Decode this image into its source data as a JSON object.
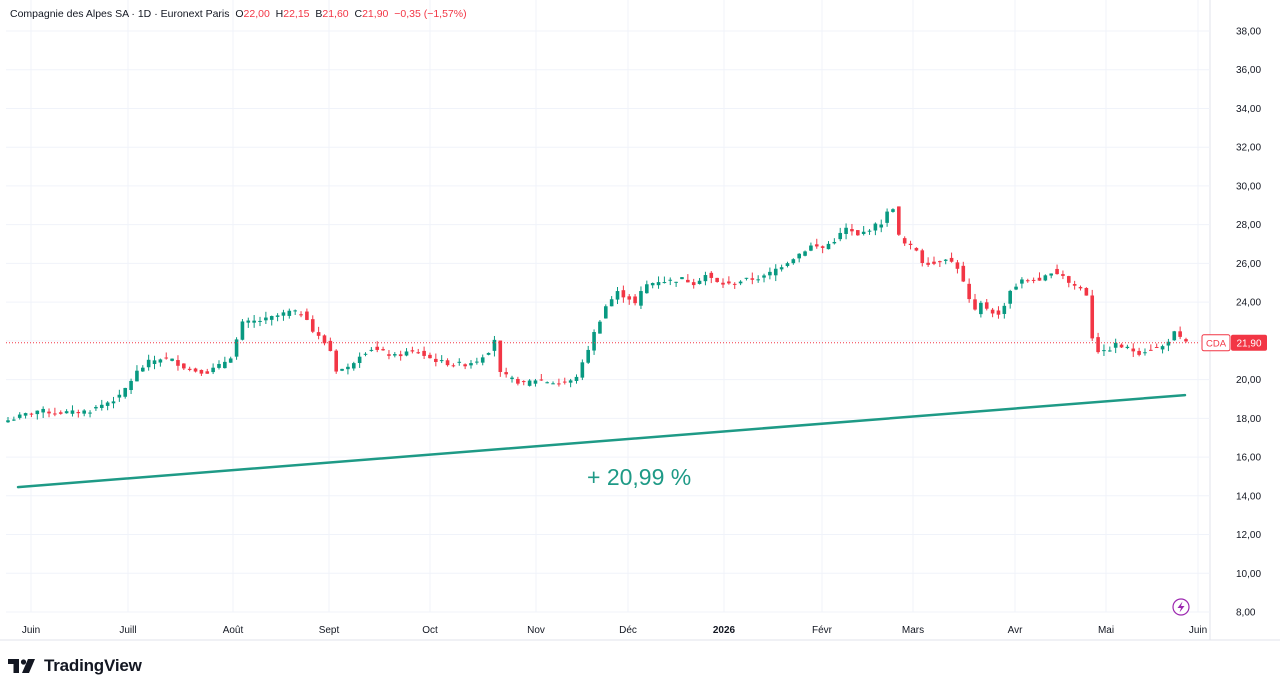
{
  "header": {
    "symbol_name": "Compagnie des Alpes SA",
    "interval": "1D",
    "exchange": "Euronext Paris",
    "o_label": "O",
    "o_value": "22,00",
    "h_label": "H",
    "h_value": "22,15",
    "b_label": "B",
    "b_value": "21,60",
    "c_label": "C",
    "c_value": "21,90",
    "change": "−0,35 (−1,57%)"
  },
  "colors": {
    "up": "#089981",
    "down": "#f23645",
    "trend": "#1e9a86",
    "grid": "#f0f3fa",
    "axis_text": "#131722"
  },
  "price_tag": {
    "ticker": "CDA",
    "price": "21,90"
  },
  "trend_annotation": "+ 20,99 %",
  "brand": {
    "name": "TradingView",
    "logo_icon": "tradingview-logo-icon"
  },
  "lightning_icon": "lightning-icon",
  "chart_data": {
    "type": "candlestick",
    "y_axis": {
      "min": 8,
      "max": 38,
      "ticks": [
        "38,00",
        "36,00",
        "34,00",
        "32,00",
        "30,00",
        "28,00",
        "26,00",
        "24,00",
        "22,00",
        "20,00",
        "18,00",
        "16,00",
        "14,00",
        "12,00",
        "10,00",
        "8,00"
      ],
      "tick_values": [
        38,
        36,
        34,
        32,
        30,
        28,
        26,
        24,
        22,
        20,
        18,
        16,
        14,
        12,
        10,
        8
      ]
    },
    "x_axis": {
      "labels": [
        "Juin",
        "Juill",
        "Août",
        "Sept",
        "Oct",
        "Nov",
        "Déc",
        "2026",
        "Févr",
        "Mars",
        "Avr",
        "Mai",
        "Juin"
      ],
      "bold": [
        false,
        false,
        false,
        false,
        false,
        false,
        false,
        true,
        false,
        false,
        false,
        false,
        false
      ]
    },
    "last_price": 21.9,
    "close_path": [
      [
        0,
        17.9
      ],
      [
        2,
        18.1
      ],
      [
        5,
        18.4
      ],
      [
        8,
        18.3
      ],
      [
        11,
        18.3
      ],
      [
        14,
        18.4
      ],
      [
        16,
        18.7
      ],
      [
        19,
        19.1
      ],
      [
        22,
        20.4
      ],
      [
        24,
        20.9
      ],
      [
        26,
        21.1
      ],
      [
        28,
        21.0
      ],
      [
        31,
        20.5
      ],
      [
        34,
        20.4
      ],
      [
        36,
        20.7
      ],
      [
        38,
        21.2
      ],
      [
        40,
        22.9
      ],
      [
        42,
        23.0
      ],
      [
        44,
        23.1
      ],
      [
        46,
        23.3
      ],
      [
        48,
        23.5
      ],
      [
        50,
        23.4
      ],
      [
        51,
        23.2
      ],
      [
        52,
        22.5
      ],
      [
        54,
        21.9
      ],
      [
        55,
        21.5
      ],
      [
        56,
        20.5
      ],
      [
        58,
        20.6
      ],
      [
        60,
        21.3
      ],
      [
        62,
        21.6
      ],
      [
        64,
        21.4
      ],
      [
        66,
        21.2
      ],
      [
        68,
        21.4
      ],
      [
        70,
        21.4
      ],
      [
        72,
        21.1
      ],
      [
        74,
        20.9
      ],
      [
        76,
        20.8
      ],
      [
        78,
        20.8
      ],
      [
        80,
        21.0
      ],
      [
        82,
        21.5
      ],
      [
        83,
        22.1
      ],
      [
        84,
        20.3
      ],
      [
        86,
        20.0
      ],
      [
        88,
        19.8
      ],
      [
        90,
        20.0
      ],
      [
        92,
        19.9
      ],
      [
        94,
        19.8
      ],
      [
        96,
        19.9
      ],
      [
        97,
        20.2
      ],
      [
        98,
        20.8
      ],
      [
        99,
        21.6
      ],
      [
        100,
        22.4
      ],
      [
        101,
        23.1
      ],
      [
        102,
        23.8
      ],
      [
        104,
        24.5
      ],
      [
        106,
        24.2
      ],
      [
        107,
        23.9
      ],
      [
        108,
        24.5
      ],
      [
        109,
        24.9
      ],
      [
        111,
        25.1
      ],
      [
        113,
        25.1
      ],
      [
        115,
        25.2
      ],
      [
        117,
        25.0
      ],
      [
        119,
        25.4
      ],
      [
        121,
        25.0
      ],
      [
        123,
        24.9
      ],
      [
        125,
        25.1
      ],
      [
        127,
        25.2
      ],
      [
        129,
        25.3
      ],
      [
        131,
        25.7
      ],
      [
        133,
        26.1
      ],
      [
        135,
        26.5
      ],
      [
        137,
        26.9
      ],
      [
        139,
        26.8
      ],
      [
        141,
        27.2
      ],
      [
        143,
        27.8
      ],
      [
        145,
        27.4
      ],
      [
        147,
        27.8
      ],
      [
        149,
        28.1
      ],
      [
        150,
        28.6
      ],
      [
        151,
        28.9
      ],
      [
        152,
        27.4
      ],
      [
        153,
        27.0
      ],
      [
        155,
        26.7
      ],
      [
        156,
        26.1
      ],
      [
        158,
        26.0
      ],
      [
        160,
        26.3
      ],
      [
        162,
        25.8
      ],
      [
        163,
        25.0
      ],
      [
        164,
        24.1
      ],
      [
        165,
        23.5
      ],
      [
        166,
        23.9
      ],
      [
        168,
        23.5
      ],
      [
        169,
        23.3
      ],
      [
        170,
        23.9
      ],
      [
        171,
        24.6
      ],
      [
        173,
        25.1
      ],
      [
        175,
        25.2
      ],
      [
        176,
        25.0
      ],
      [
        178,
        25.6
      ],
      [
        180,
        25.4
      ],
      [
        181,
        25.0
      ],
      [
        183,
        24.7
      ],
      [
        184,
        24.4
      ],
      [
        185,
        22.2
      ],
      [
        186,
        21.5
      ],
      [
        187,
        21.4
      ],
      [
        189,
        21.8
      ],
      [
        191,
        21.6
      ],
      [
        193,
        21.4
      ],
      [
        195,
        21.6
      ],
      [
        197,
        21.7
      ],
      [
        199,
        22.4
      ],
      [
        200,
        22.1
      ],
      [
        201,
        21.9
      ]
    ],
    "trendline": {
      "start": {
        "x_label_pos": 0,
        "price": 14.45
      },
      "end": {
        "x_label_pos": 1,
        "price": 19.2
      }
    }
  }
}
